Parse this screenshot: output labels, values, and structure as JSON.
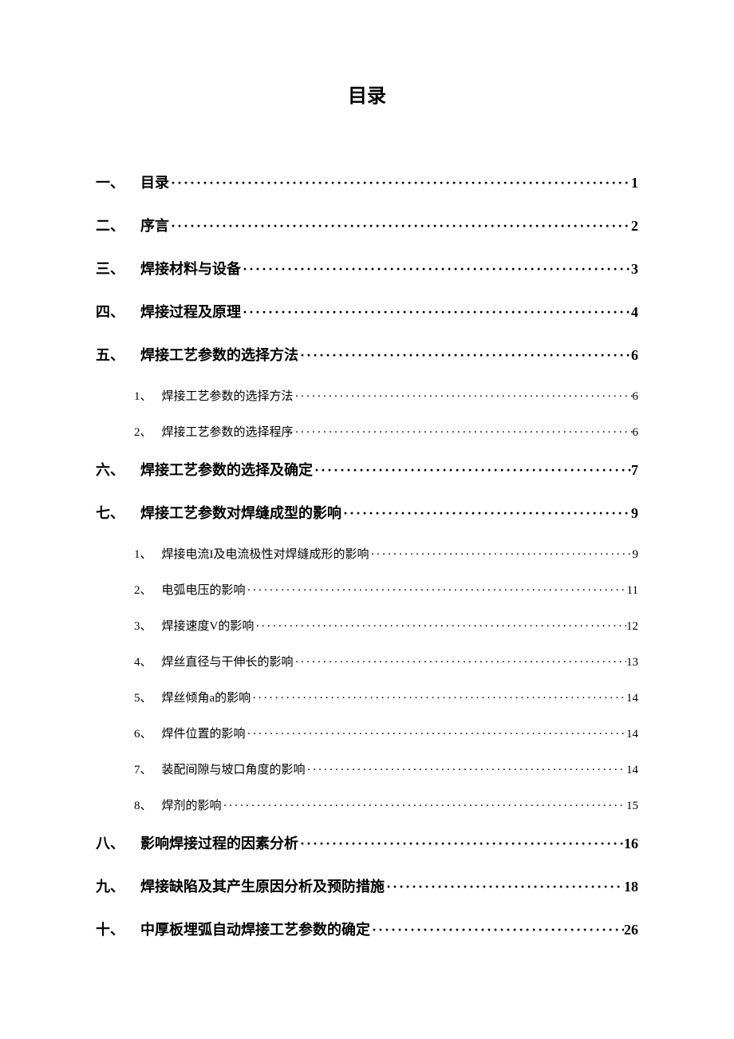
{
  "title": "目录",
  "entries": [
    {
      "type": "main",
      "num": "一、",
      "label": "目录",
      "page": "1"
    },
    {
      "type": "main",
      "num": "二、",
      "label": "序言",
      "page": "2"
    },
    {
      "type": "main",
      "num": "三、",
      "label": "焊接材料与设备",
      "page": "3"
    },
    {
      "type": "main",
      "num": "四、",
      "label": "焊接过程及原理",
      "page": "4"
    },
    {
      "type": "main",
      "num": "五、",
      "label": "焊接工艺参数的选择方法",
      "page": "6"
    },
    {
      "type": "sub",
      "num": "1、",
      "label": "焊接工艺参数的选择方法",
      "page": "6"
    },
    {
      "type": "sub",
      "num": "2、",
      "label": "焊接工艺参数的选择程序",
      "page": "6"
    },
    {
      "type": "main",
      "num": "六、",
      "label": "焊接工艺参数的选择及确定",
      "page": "7"
    },
    {
      "type": "main",
      "num": "七、",
      "label": "焊接工艺参数对焊缝成型的影响",
      "page": "9"
    },
    {
      "type": "sub",
      "num": "1、",
      "label": "焊接电流I及电流极性对焊缝成形的影响",
      "page": "9"
    },
    {
      "type": "sub",
      "num": "2、",
      "label": "电弧电压的影响",
      "page": "11"
    },
    {
      "type": "sub",
      "num": "3、",
      "label": "焊接速度V的影响",
      "page": "12"
    },
    {
      "type": "sub",
      "num": "4、",
      "label": "焊丝直径与干伸长的影响",
      "page": "13"
    },
    {
      "type": "sub",
      "num": "5、",
      "label": "焊丝倾角a的影响",
      "page": "14"
    },
    {
      "type": "sub",
      "num": "6、",
      "label": "焊件位置的影响",
      "page": "14"
    },
    {
      "type": "sub",
      "num": "7、",
      "label": "装配间隙与坡口角度的影响",
      "page": "14"
    },
    {
      "type": "sub",
      "num": "8、",
      "label": "焊剂的影响",
      "page": "15"
    },
    {
      "type": "main",
      "num": "八、",
      "label": "影响焊接过程的因素分析",
      "page": "16"
    },
    {
      "type": "main",
      "num": "九、",
      "label": "焊接缺陷及其产生原因分析及预防措施",
      "page": "18"
    },
    {
      "type": "main",
      "num": "十、",
      "label": "中厚板埋弧自动焊接工艺参数的确定",
      "page": "26"
    }
  ],
  "colors": {
    "text": "#000000",
    "background": "#ffffff"
  },
  "typography": {
    "title_fontsize": 24,
    "main_fontsize": 18,
    "sub_fontsize": 15,
    "font_family": "SimSun"
  }
}
